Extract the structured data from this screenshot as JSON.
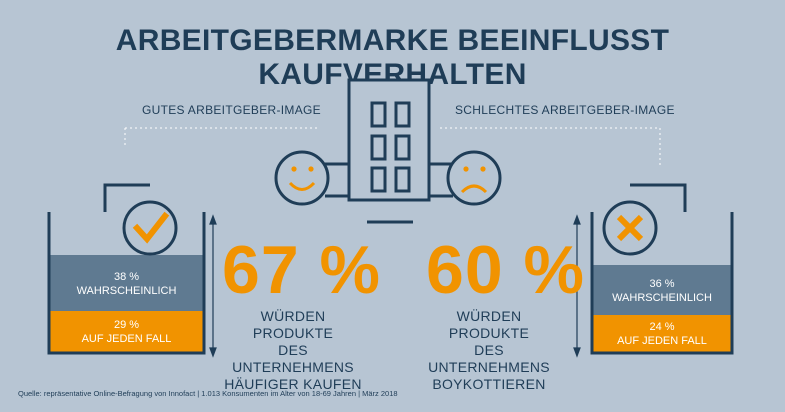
{
  "title": "ARBEITGEBERMARKE BEEINFLUSST KAUFVERHALTEN",
  "labels": {
    "good": "GUTES ARBEITGEBER-IMAGE",
    "bad": "SCHLECHTES ARBEITGEBER-IMAGE"
  },
  "left": {
    "big_value": "67 %",
    "desc_line1": "WÜRDEN PRODUKTE",
    "desc_line2": "DES UNTERNEHMENS",
    "desc_line3": "HÄUFIGER KAUFEN",
    "upper_pct": "38 %",
    "upper_label": "WAHRSCHEINLICH",
    "lower_pct": "29 %",
    "lower_label": "AUF JEDEN FALL",
    "upper_value": 38,
    "lower_value": 29
  },
  "right": {
    "big_value": "60 %",
    "desc_line1": "WÜRDEN PRODUKTE",
    "desc_line2": "DES UNTERNEHMENS",
    "desc_line3": "BOYKOTTIEREN",
    "upper_pct": "36 %",
    "upper_label": "WAHRSCHEINLICH",
    "lower_pct": "24 %",
    "lower_label": "AUF JEDEN FALL",
    "upper_value": 36,
    "lower_value": 24
  },
  "source": "Quelle: repräsentative Online-Befragung von Innofact | 1.013 Konsumenten im Alter von 18-69 Jahren | März 2018",
  "colors": {
    "background": "#b7c5d3",
    "navy": "#1f3d57",
    "slate": "#5f7a91",
    "orange": "#f19300"
  },
  "icons": [
    "building-icon",
    "smiley-icon",
    "frown-icon",
    "checkmark-icon",
    "cross-icon"
  ]
}
